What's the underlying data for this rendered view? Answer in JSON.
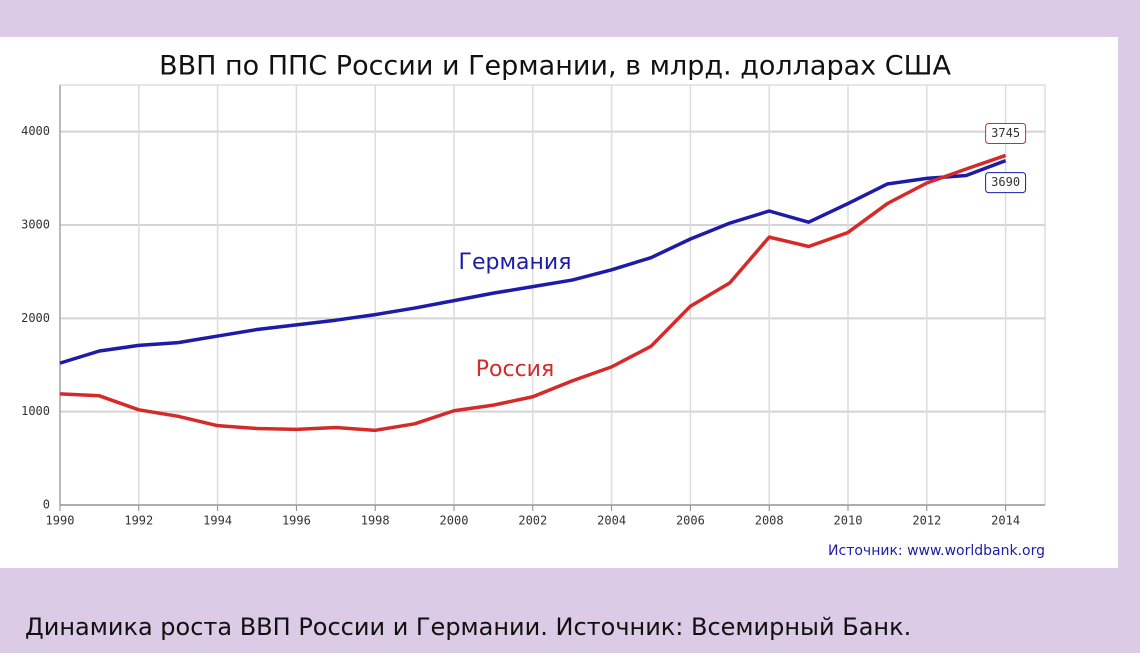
{
  "chart_data": {
    "type": "line",
    "title": "ВВП по ППС России и Германии, в млрд. долларах США",
    "source": "Источник: www.worldbank.org",
    "x": [
      1990,
      1991,
      1992,
      1993,
      1994,
      1995,
      1996,
      1997,
      1998,
      1999,
      2000,
      2001,
      2002,
      2003,
      2004,
      2005,
      2006,
      2007,
      2008,
      2009,
      2010,
      2011,
      2012,
      2013,
      2014
    ],
    "series": [
      {
        "name": "Германия",
        "color": "#1c1ca8",
        "values": [
          1520,
          1650,
          1710,
          1740,
          1810,
          1880,
          1930,
          1980,
          2040,
          2110,
          2190,
          2270,
          2340,
          2410,
          2520,
          2650,
          2850,
          3020,
          3150,
          3030,
          3230,
          3440,
          3500,
          3530,
          3690
        ]
      },
      {
        "name": "Россия",
        "color": "#d42a2a",
        "values": [
          1190,
          1170,
          1020,
          950,
          850,
          820,
          810,
          830,
          800,
          870,
          1010,
          1070,
          1160,
          1330,
          1480,
          1700,
          2130,
          2380,
          2870,
          2770,
          2920,
          3230,
          3450,
          3600,
          3745
        ]
      }
    ],
    "xlim": [
      1990,
      2015
    ],
    "xticks": [
      1990,
      1992,
      1994,
      1996,
      1998,
      2000,
      2002,
      2004,
      2006,
      2008,
      2010,
      2012,
      2014
    ],
    "ylim": [
      0,
      4500
    ],
    "yticks": [
      0,
      1000,
      2000,
      3000,
      4000
    ],
    "grid": true
  },
  "caption": "Динамика роста ВВП  России и Германии. Источник: Всемирный Банк."
}
